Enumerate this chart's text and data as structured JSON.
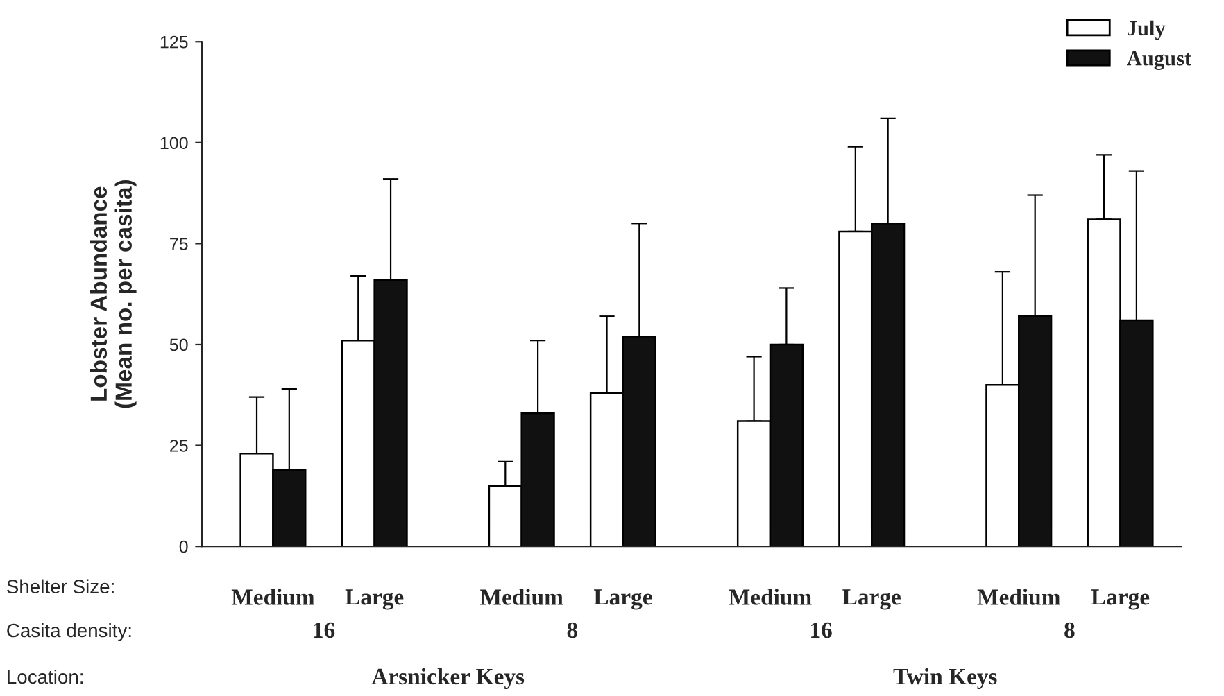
{
  "chart_data": {
    "type": "bar",
    "ylabel": "Lobster Abundance\n(Mean no. per casita)",
    "categories": [
      "Medium",
      "Large",
      "Medium",
      "Large",
      "Medium",
      "Large",
      "Medium",
      "Large"
    ],
    "series": [
      {
        "name": "July",
        "color": "#ffffff",
        "values": [
          23,
          51,
          15,
          38,
          31,
          78,
          40,
          81
        ],
        "errors": [
          [
            23,
            37
          ],
          [
            51,
            67
          ],
          [
            15,
            21
          ],
          [
            38,
            57
          ],
          [
            31,
            47
          ],
          [
            78,
            99
          ],
          [
            40,
            68
          ],
          [
            81,
            97
          ]
        ]
      },
      {
        "name": "August",
        "color": "#111111",
        "values": [
          19,
          66,
          33,
          52,
          50,
          80,
          57,
          56
        ],
        "errors": [
          [
            19,
            39
          ],
          [
            66,
            91
          ],
          [
            33,
            51
          ],
          [
            52,
            80
          ],
          [
            50,
            64
          ],
          [
            80,
            106
          ],
          [
            57,
            87
          ],
          [
            56,
            93
          ]
        ]
      }
    ],
    "ylim": [
      0,
      125
    ],
    "yticks": [
      0,
      25,
      50,
      75,
      100,
      125
    ],
    "grid": false,
    "legend": "top right",
    "annotations": [
      "Shelter Size:",
      "Casita density:",
      "16",
      "8",
      "16",
      "8",
      "Location:",
      "Arsnicker Keys",
      "Twin Keys"
    ]
  }
}
